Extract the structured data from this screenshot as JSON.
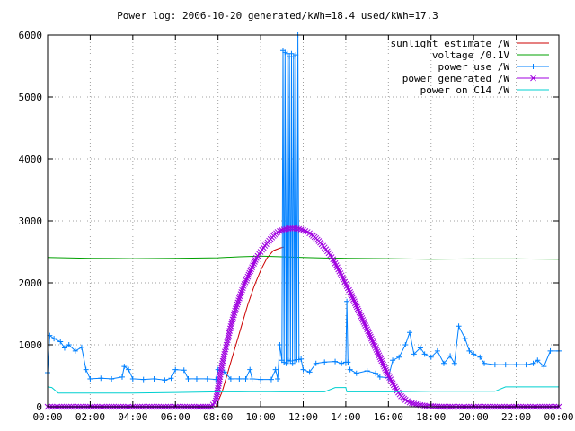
{
  "chart_data": {
    "type": "line",
    "title": "Power log: 2006-10-20 generated/kWh=18.4 used/kWh=17.3",
    "xlabel": "",
    "ylabel": "",
    "xlim": [
      0,
      24
    ],
    "ylim": [
      0,
      6000
    ],
    "x_tick_labels": [
      "00:00",
      "02:00",
      "04:00",
      "06:00",
      "08:00",
      "10:00",
      "12:00",
      "14:00",
      "16:00",
      "18:00",
      "20:00",
      "22:00",
      "00:00"
    ],
    "y_tick_values": [
      0,
      1000,
      2000,
      3000,
      4000,
      5000,
      6000
    ],
    "grid": true,
    "legend_position": "top-right",
    "series": [
      {
        "name": "sunlight estimate /W",
        "color": "#cc0000",
        "style": "line",
        "points": [
          [
            7.9,
            0
          ],
          [
            8.2,
            250
          ],
          [
            8.5,
            600
          ],
          [
            8.8,
            950
          ],
          [
            9.1,
            1300
          ],
          [
            9.4,
            1650
          ],
          [
            9.7,
            1950
          ],
          [
            10.0,
            2200
          ],
          [
            10.3,
            2400
          ],
          [
            10.6,
            2520
          ],
          [
            10.9,
            2560
          ],
          [
            11.1,
            2580
          ]
        ]
      },
      {
        "name": "voltage /0.1V",
        "color": "#00a000",
        "style": "line",
        "points": [
          [
            0,
            2410
          ],
          [
            2,
            2395
          ],
          [
            4,
            2390
          ],
          [
            6,
            2395
          ],
          [
            8,
            2405
          ],
          [
            9,
            2420
          ],
          [
            10,
            2430
          ],
          [
            11,
            2420
          ],
          [
            12,
            2410
          ],
          [
            13,
            2400
          ],
          [
            14,
            2395
          ],
          [
            16,
            2390
          ],
          [
            18,
            2380
          ],
          [
            20,
            2385
          ],
          [
            22,
            2385
          ],
          [
            24,
            2380
          ]
        ]
      },
      {
        "name": "power use /W",
        "color": "#0080ff",
        "style": "linepoints",
        "points": [
          [
            0,
            550
          ],
          [
            0.1,
            1150
          ],
          [
            0.3,
            1100
          ],
          [
            0.6,
            1050
          ],
          [
            0.8,
            950
          ],
          [
            1.0,
            1000
          ],
          [
            1.3,
            900
          ],
          [
            1.6,
            960
          ],
          [
            1.8,
            600
          ],
          [
            2.0,
            450
          ],
          [
            2.5,
            460
          ],
          [
            3.0,
            450
          ],
          [
            3.5,
            480
          ],
          [
            3.6,
            650
          ],
          [
            3.8,
            600
          ],
          [
            4.0,
            450
          ],
          [
            4.5,
            440
          ],
          [
            5.0,
            450
          ],
          [
            5.5,
            430
          ],
          [
            5.8,
            460
          ],
          [
            6.0,
            600
          ],
          [
            6.4,
            590
          ],
          [
            6.6,
            450
          ],
          [
            7.0,
            450
          ],
          [
            7.5,
            450
          ],
          [
            7.9,
            440
          ],
          [
            8.0,
            600
          ],
          [
            8.3,
            560
          ],
          [
            8.6,
            450
          ],
          [
            9.0,
            450
          ],
          [
            9.3,
            450
          ],
          [
            9.5,
            600
          ],
          [
            9.6,
            450
          ],
          [
            10.0,
            440
          ],
          [
            10.5,
            440
          ],
          [
            10.7,
            600
          ],
          [
            10.8,
            450
          ],
          [
            10.9,
            1000
          ],
          [
            11.0,
            750
          ],
          [
            11.05,
            5750
          ],
          [
            11.1,
            720
          ],
          [
            11.15,
            5720
          ],
          [
            11.2,
            700
          ],
          [
            11.25,
            5700
          ],
          [
            11.3,
            750
          ],
          [
            11.35,
            5650
          ],
          [
            11.4,
            740
          ],
          [
            11.45,
            5700
          ],
          [
            11.5,
            700
          ],
          [
            11.55,
            5650
          ],
          [
            11.6,
            750
          ],
          [
            11.65,
            5680
          ],
          [
            11.7,
            760
          ],
          [
            11.75,
            6000
          ],
          [
            11.8,
            760
          ],
          [
            11.9,
            770
          ],
          [
            12.0,
            600
          ],
          [
            12.3,
            560
          ],
          [
            12.6,
            700
          ],
          [
            13.0,
            720
          ],
          [
            13.5,
            730
          ],
          [
            13.8,
            700
          ],
          [
            14.0,
            720
          ],
          [
            14.05,
            1700
          ],
          [
            14.1,
            720
          ],
          [
            14.2,
            600
          ],
          [
            14.5,
            540
          ],
          [
            15.0,
            580
          ],
          [
            15.4,
            540
          ],
          [
            15.6,
            480
          ],
          [
            16.0,
            470
          ],
          [
            16.2,
            750
          ],
          [
            16.5,
            800
          ],
          [
            16.8,
            1000
          ],
          [
            17.0,
            1200
          ],
          [
            17.2,
            850
          ],
          [
            17.5,
            950
          ],
          [
            17.7,
            850
          ],
          [
            18.0,
            800
          ],
          [
            18.3,
            900
          ],
          [
            18.6,
            700
          ],
          [
            18.9,
            820
          ],
          [
            19.1,
            700
          ],
          [
            19.3,
            1300
          ],
          [
            19.6,
            1100
          ],
          [
            19.8,
            900
          ],
          [
            20.0,
            850
          ],
          [
            20.3,
            800
          ],
          [
            20.5,
            700
          ],
          [
            21.0,
            680
          ],
          [
            21.5,
            680
          ],
          [
            22.0,
            680
          ],
          [
            22.5,
            680
          ],
          [
            22.8,
            700
          ],
          [
            23.0,
            750
          ],
          [
            23.3,
            650
          ],
          [
            23.6,
            900
          ],
          [
            24.0,
            900
          ]
        ]
      },
      {
        "name": "power generated /W",
        "color": "#a000e0",
        "style": "points",
        "points": [
          [
            0,
            0
          ],
          [
            1,
            0
          ],
          [
            2,
            0
          ],
          [
            3,
            0
          ],
          [
            4,
            0
          ],
          [
            5,
            0
          ],
          [
            6,
            0
          ],
          [
            7,
            0
          ],
          [
            7.7,
            0
          ],
          [
            7.9,
            100
          ],
          [
            8.0,
            300
          ],
          [
            8.2,
            700
          ],
          [
            8.4,
            1000
          ],
          [
            8.6,
            1300
          ],
          [
            8.8,
            1550
          ],
          [
            9.0,
            1750
          ],
          [
            9.2,
            1950
          ],
          [
            9.4,
            2100
          ],
          [
            9.6,
            2250
          ],
          [
            9.8,
            2400
          ],
          [
            10.0,
            2500
          ],
          [
            10.2,
            2600
          ],
          [
            10.4,
            2680
          ],
          [
            10.6,
            2760
          ],
          [
            10.8,
            2820
          ],
          [
            11.0,
            2850
          ],
          [
            11.2,
            2870
          ],
          [
            11.4,
            2880
          ],
          [
            11.6,
            2880
          ],
          [
            11.8,
            2870
          ],
          [
            12.0,
            2850
          ],
          [
            12.2,
            2820
          ],
          [
            12.4,
            2780
          ],
          [
            12.6,
            2720
          ],
          [
            12.8,
            2650
          ],
          [
            13.0,
            2570
          ],
          [
            13.2,
            2480
          ],
          [
            13.4,
            2380
          ],
          [
            13.6,
            2250
          ],
          [
            13.8,
            2120
          ],
          [
            14.0,
            1980
          ],
          [
            14.2,
            1850
          ],
          [
            14.4,
            1700
          ],
          [
            14.6,
            1550
          ],
          [
            14.8,
            1400
          ],
          [
            15.0,
            1250
          ],
          [
            15.2,
            1100
          ],
          [
            15.4,
            950
          ],
          [
            15.6,
            800
          ],
          [
            15.8,
            650
          ],
          [
            16.0,
            500
          ],
          [
            16.2,
            380
          ],
          [
            16.4,
            260
          ],
          [
            16.6,
            170
          ],
          [
            16.8,
            110
          ],
          [
            17.0,
            70
          ],
          [
            17.3,
            40
          ],
          [
            17.6,
            20
          ],
          [
            18.0,
            10
          ],
          [
            18.5,
            0
          ],
          [
            19,
            0
          ],
          [
            20,
            0
          ],
          [
            21,
            0
          ],
          [
            22,
            0
          ],
          [
            23,
            0
          ],
          [
            24,
            0
          ]
        ]
      },
      {
        "name": "power on C14 /W",
        "color": "#00d0d0",
        "style": "line",
        "points": [
          [
            0,
            320
          ],
          [
            0.2,
            310
          ],
          [
            0.5,
            220
          ],
          [
            2,
            220
          ],
          [
            4,
            220
          ],
          [
            6,
            230
          ],
          [
            8,
            240
          ],
          [
            9,
            240
          ],
          [
            10,
            245
          ],
          [
            11,
            240
          ],
          [
            12,
            240
          ],
          [
            13,
            240
          ],
          [
            13.5,
            310
          ],
          [
            14,
            310
          ],
          [
            14.05,
            240
          ],
          [
            16,
            240
          ],
          [
            18,
            250
          ],
          [
            20,
            250
          ],
          [
            21,
            250
          ],
          [
            21.5,
            320
          ],
          [
            24,
            320
          ],
          [
            24,
            260
          ]
        ]
      }
    ]
  }
}
